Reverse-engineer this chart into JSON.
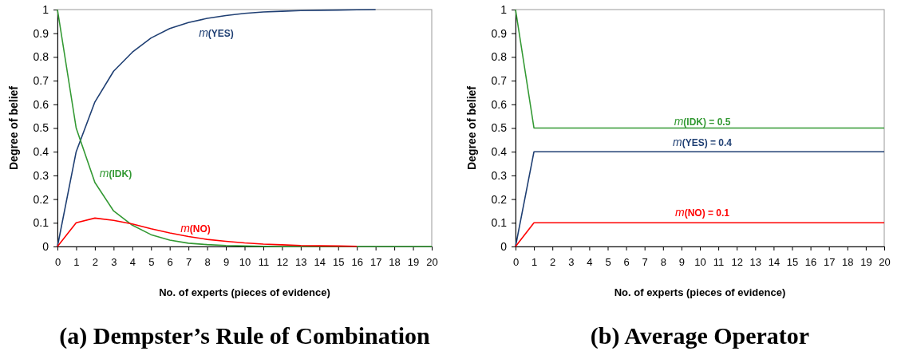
{
  "chart_data": [
    {
      "type": "line",
      "title": "(a) Dempster’s Rule of Combination",
      "xlabel": "No. of experts (pieces of evidence)",
      "ylabel": "Degree of belief",
      "xlim": [
        0,
        20
      ],
      "xticks": [
        0,
        1,
        2,
        3,
        4,
        5,
        6,
        7,
        8,
        9,
        10,
        11,
        12,
        13,
        14,
        15,
        16,
        17,
        18,
        19,
        20
      ],
      "ylim": [
        0,
        1
      ],
      "yticks": [
        0,
        0.1,
        0.2,
        0.3,
        0.4,
        0.5,
        0.6,
        0.7,
        0.8,
        0.9,
        1
      ],
      "grid": false,
      "marker": "none",
      "line_style": "solid",
      "series": [
        {
          "name": "m(YES)",
          "color": "#1f3f73",
          "x": [
            0,
            1,
            2,
            3,
            4,
            5,
            6,
            7,
            8,
            9,
            10,
            11,
            12,
            13,
            14,
            15,
            16,
            17
          ],
          "values": [
            0,
            0.4,
            0.61,
            0.74,
            0.82,
            0.88,
            0.92,
            0.945,
            0.963,
            0.975,
            0.984,
            0.99,
            0.993,
            0.996,
            0.997,
            0.998,
            0.999,
            1
          ]
        },
        {
          "name": "m(IDK)",
          "color": "#339933",
          "x": [
            0,
            1,
            2,
            3,
            4,
            5,
            6,
            7,
            8,
            9,
            10,
            11,
            12,
            13,
            14,
            15,
            16,
            17,
            18,
            19,
            20
          ],
          "values": [
            1,
            0.5,
            0.27,
            0.15,
            0.09,
            0.05,
            0.027,
            0.014,
            0.008,
            0.004,
            0.002,
            0.001,
            0,
            0,
            0,
            0,
            0,
            0,
            0,
            0,
            0
          ]
        },
        {
          "name": "m(NO)",
          "color": "#ff0000",
          "x": [
            0,
            1,
            2,
            3,
            4,
            5,
            6,
            7,
            8,
            9,
            10,
            11,
            12,
            13,
            14,
            15,
            16
          ],
          "values": [
            0,
            0.1,
            0.12,
            0.11,
            0.095,
            0.075,
            0.057,
            0.042,
            0.03,
            0.022,
            0.015,
            0.01,
            0.007,
            0.004,
            0.003,
            0.002,
            0.001
          ]
        }
      ]
    },
    {
      "type": "line",
      "title": "(b) Average Operator",
      "xlabel": "No. of experts (pieces of evidence)",
      "ylabel": "Degree of belief",
      "xlim": [
        0,
        20
      ],
      "xticks": [
        0,
        1,
        2,
        3,
        4,
        5,
        6,
        7,
        8,
        9,
        10,
        11,
        12,
        13,
        14,
        15,
        16,
        17,
        18,
        19,
        20
      ],
      "ylim": [
        0,
        1
      ],
      "yticks": [
        0,
        0.1,
        0.2,
        0.3,
        0.4,
        0.5,
        0.6,
        0.7,
        0.8,
        0.9,
        1
      ],
      "grid": false,
      "marker": "none",
      "line_style": "solid",
      "series": [
        {
          "name": "m(YES) = 0.4",
          "color": "#1f3f73",
          "x": [
            0,
            1,
            2,
            3,
            4,
            5,
            6,
            7,
            8,
            9,
            10,
            11,
            12,
            13,
            14,
            15,
            16,
            17,
            18,
            19,
            20
          ],
          "values": [
            0,
            0.4,
            0.4,
            0.4,
            0.4,
            0.4,
            0.4,
            0.4,
            0.4,
            0.4,
            0.4,
            0.4,
            0.4,
            0.4,
            0.4,
            0.4,
            0.4,
            0.4,
            0.4,
            0.4,
            0.4
          ]
        },
        {
          "name": "m(IDK) = 0.5",
          "color": "#339933",
          "x": [
            0,
            1,
            2,
            3,
            4,
            5,
            6,
            7,
            8,
            9,
            10,
            11,
            12,
            13,
            14,
            15,
            16,
            17,
            18,
            19,
            20
          ],
          "values": [
            1,
            0.5,
            0.5,
            0.5,
            0.5,
            0.5,
            0.5,
            0.5,
            0.5,
            0.5,
            0.5,
            0.5,
            0.5,
            0.5,
            0.5,
            0.5,
            0.5,
            0.5,
            0.5,
            0.5,
            0.5
          ]
        },
        {
          "name": "m(NO) = 0.1",
          "color": "#ff0000",
          "x": [
            0,
            1,
            2,
            3,
            4,
            5,
            6,
            7,
            8,
            9,
            10,
            11,
            12,
            13,
            14,
            15,
            16,
            17,
            18,
            19,
            20
          ],
          "values": [
            0,
            0.1,
            0.1,
            0.1,
            0.1,
            0.1,
            0.1,
            0.1,
            0.1,
            0.1,
            0.1,
            0.1,
            0.1,
            0.1,
            0.1,
            0.1,
            0.1,
            0.1,
            0.1,
            0.1,
            0.1
          ]
        }
      ]
    }
  ]
}
